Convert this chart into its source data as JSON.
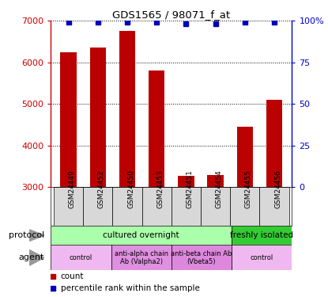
{
  "title": "GDS1565 / 98071_f_at",
  "samples": [
    "GSM24449",
    "GSM24452",
    "GSM24450",
    "GSM24453",
    "GSM24451",
    "GSM24454",
    "GSM24455",
    "GSM24456"
  ],
  "counts": [
    6250,
    6350,
    6750,
    5800,
    3280,
    3300,
    4450,
    5100
  ],
  "percentile_ranks": [
    99,
    99,
    99,
    99,
    98,
    98,
    99,
    99
  ],
  "ylim_left": [
    3000,
    7000
  ],
  "ylim_right": [
    0,
    100
  ],
  "yticks_left": [
    3000,
    4000,
    5000,
    6000,
    7000
  ],
  "yticks_right": [
    0,
    25,
    50,
    75,
    100
  ],
  "bar_color": "#bb0000",
  "dot_color": "#0000bb",
  "bar_width": 0.55,
  "protocol_groups": [
    {
      "label": "cultured overnight",
      "start": 0,
      "end": 6,
      "color": "#aaffaa"
    },
    {
      "label": "freshly isolated",
      "start": 6,
      "end": 8,
      "color": "#33cc33"
    }
  ],
  "agent_groups": [
    {
      "label": "control",
      "start": 0,
      "end": 2,
      "color": "#f0b8f0"
    },
    {
      "label": "anti-alpha chain\nAb (Valpha2)",
      "start": 2,
      "end": 4,
      "color": "#e090e0"
    },
    {
      "label": "anti-beta chain Ab\n(Vbeta5)",
      "start": 4,
      "end": 6,
      "color": "#dd88dd"
    },
    {
      "label": "control",
      "start": 6,
      "end": 8,
      "color": "#f0b8f0"
    }
  ],
  "legend_red_label": "count",
  "legend_blue_label": "percentile rank within the sample",
  "left_axis_color": "#cc0000",
  "right_axis_color": "#0000cc",
  "grid_color": "#000000"
}
